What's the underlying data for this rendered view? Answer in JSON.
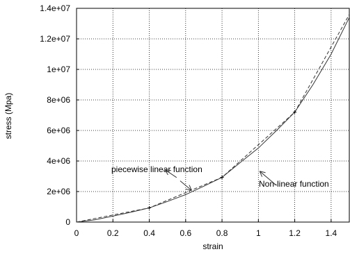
{
  "chart_data": {
    "type": "line",
    "title": "",
    "xlabel": "strain",
    "ylabel": "stress (Mpa)",
    "xlim": [
      0,
      1.5
    ],
    "ylim": [
      0,
      14000000
    ],
    "xticks": [
      0,
      0.2,
      0.4,
      0.6,
      0.8,
      1,
      1.2,
      1.4
    ],
    "xtick_labels": [
      "0",
      "0.2",
      "0.4",
      "0.6",
      "0.8",
      "1",
      "1.2",
      "1.4"
    ],
    "yticks": [
      0,
      2000000,
      4000000,
      6000000,
      8000000,
      10000000,
      12000000,
      14000000
    ],
    "ytick_labels": [
      "0",
      "2e+06",
      "4e+06",
      "6e+06",
      "8e+06",
      "1e+07",
      "1.2e+07",
      "1.4e+07"
    ],
    "grid": true,
    "series": [
      {
        "key": "nonlinear",
        "style": "solid",
        "color": "#333333",
        "x": [
          0,
          0.1,
          0.2,
          0.3,
          0.4,
          0.5,
          0.6,
          0.7,
          0.8,
          0.9,
          1.0,
          1.1,
          1.2,
          1.3,
          1.4,
          1.5
        ],
        "y": [
          0,
          150000,
          390000,
          650000,
          930000,
          1350000,
          1800000,
          2350000,
          2930000,
          3900000,
          4850000,
          6000000,
          7200000,
          9000000,
          11000000,
          13400000
        ]
      },
      {
        "key": "piecewise",
        "style": "dashed",
        "color": "#333333",
        "x": [
          0,
          0.4,
          0.8,
          1.2,
          1.5
        ],
        "y": [
          0,
          930000,
          2930000,
          7200000,
          13600000
        ]
      }
    ],
    "breakpoints": {
      "x": [
        0.4,
        0.8,
        1.2
      ],
      "y": [
        930000,
        2930000,
        7200000
      ]
    },
    "annotations": [
      {
        "key": "piecewise-label",
        "text": "piecewise linear function",
        "anchor_x": 0.6,
        "anchor_y": 3600000,
        "arrow_to_x": 0.49,
        "arrow_to_y": 3400000
      },
      {
        "key": "piecewise-label-tail",
        "text": "",
        "anchor_x": 0.57,
        "anchor_y": 2700000,
        "arrow_to_x": 0.63,
        "arrow_to_y": 2100000
      },
      {
        "key": "nonlinear-label",
        "text": "Non-linear function",
        "anchor_x": 1.1,
        "anchor_y": 2400000,
        "arrow_to_x": 1.01,
        "arrow_to_y": 3300000
      }
    ]
  }
}
